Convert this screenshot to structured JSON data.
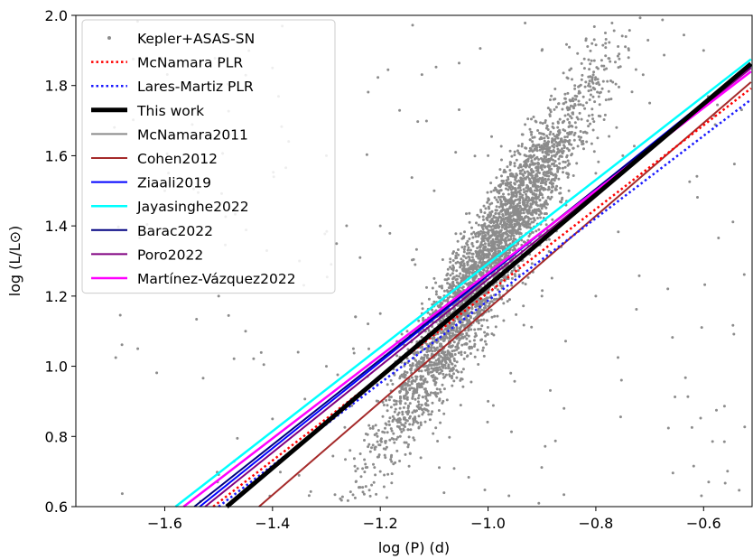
{
  "chart_data": {
    "type": "scatter",
    "xlabel": "log (P) (d)",
    "ylabel": "log (L/L⊙)",
    "xlim": [
      -1.765,
      -0.51
    ],
    "ylim": [
      0.6,
      2.0
    ],
    "x_ticks": [
      -1.6,
      -1.4,
      -1.2,
      -1.0,
      -0.8,
      -0.6
    ],
    "x_tick_labels": [
      "−1.6",
      "−1.4",
      "−1.2",
      "−1.0",
      "−0.8",
      "−0.6"
    ],
    "y_ticks": [
      0.6,
      0.8,
      1.0,
      1.2,
      1.4,
      1.6,
      1.8,
      2.0
    ],
    "y_tick_labels": [
      "0.6",
      "0.8",
      "1.0",
      "1.2",
      "1.4",
      "1.6",
      "1.8",
      "2.0"
    ],
    "grid": false,
    "legend_position": "top-left",
    "scatter": {
      "name": "Kepler+ASAS-SN",
      "color": "#8c8c8c",
      "trend_slope": 2.55,
      "trend_intercept": 3.85,
      "approx_points": 3500,
      "points": [
        [
          -1.2,
          1.15
        ],
        [
          -1.1,
          1.25
        ],
        [
          -1.0,
          1.3
        ],
        [
          -0.9,
          1.45
        ],
        [
          -0.85,
          1.5
        ],
        [
          -1.3,
          1.0
        ],
        [
          -1.05,
          1.2
        ],
        [
          -0.95,
          1.4
        ],
        [
          -1.15,
          1.1
        ],
        [
          -0.8,
          1.55
        ],
        [
          -1.25,
          1.05
        ],
        [
          -1.4,
          0.85
        ],
        [
          -0.75,
          1.6
        ],
        [
          -1.35,
          1.3
        ],
        [
          -1.0,
          1.6
        ],
        [
          -0.9,
          1.2
        ],
        [
          -1.1,
          1.5
        ],
        [
          -1.2,
          1.4
        ],
        [
          -0.7,
          1.75
        ],
        [
          -1.45,
          1.1
        ],
        [
          -1.5,
          1.2
        ],
        [
          -1.3,
          1.6
        ],
        [
          -0.6,
          1.9
        ],
        [
          -1.6,
          1.5
        ],
        [
          -1.4,
          1.85
        ],
        [
          -0.9,
          1.9
        ],
        [
          -1.2,
          0.7
        ],
        [
          -1.0,
          0.9
        ],
        [
          -0.8,
          1.2
        ],
        [
          -1.65,
          1.05
        ]
      ]
    },
    "series": [
      {
        "name": "McNamara PLR",
        "color": "#ff0000",
        "style": "dotted",
        "width": 2.5,
        "x": [
          -1.51,
          -0.512
        ],
        "y": [
          0.6,
          1.792
        ]
      },
      {
        "name": "Lares-Martiz PLR",
        "color": "#1a1aff",
        "style": "dotted",
        "width": 2.5,
        "x": [
          -1.5,
          -0.512
        ],
        "y": [
          0.6,
          1.76
        ]
      },
      {
        "name": "This work",
        "color": "#000000",
        "style": "solid",
        "width": 5,
        "x": [
          -1.485,
          -0.512
        ],
        "y": [
          0.6,
          1.862
        ]
      },
      {
        "name": "McNamara2011",
        "color": "#8a8a8a",
        "style": "solid",
        "width": 2,
        "x": [
          -1.565,
          -0.512
        ],
        "y": [
          0.6,
          1.84
        ]
      },
      {
        "name": "Cohen2012",
        "color": "#a52a2a",
        "style": "solid",
        "width": 2,
        "x": [
          -1.425,
          -0.512
        ],
        "y": [
          0.6,
          1.81
        ]
      },
      {
        "name": "Ziaali2019",
        "color": "#0000ff",
        "style": "solid",
        "width": 2,
        "x": [
          -1.535,
          -0.512
        ],
        "y": [
          0.6,
          1.86
        ]
      },
      {
        "name": "Jayasinghe2022",
        "color": "#00ffff",
        "style": "solid",
        "width": 2.5,
        "x": [
          -1.58,
          -0.512
        ],
        "y": [
          0.6,
          1.875
        ]
      },
      {
        "name": "Barac2022",
        "color": "#000080",
        "style": "solid",
        "width": 2,
        "x": [
          -1.545,
          -0.512
        ],
        "y": [
          0.6,
          1.855
        ]
      },
      {
        "name": "Poro2022",
        "color": "#800080",
        "style": "solid",
        "width": 2,
        "x": [
          -1.525,
          -0.512
        ],
        "y": [
          0.6,
          1.85
        ]
      },
      {
        "name": "Martínez-Vázquez2022",
        "color": "#ff00ff",
        "style": "solid",
        "width": 2.5,
        "x": [
          -1.565,
          -0.512
        ],
        "y": [
          0.6,
          1.84
        ]
      }
    ]
  }
}
